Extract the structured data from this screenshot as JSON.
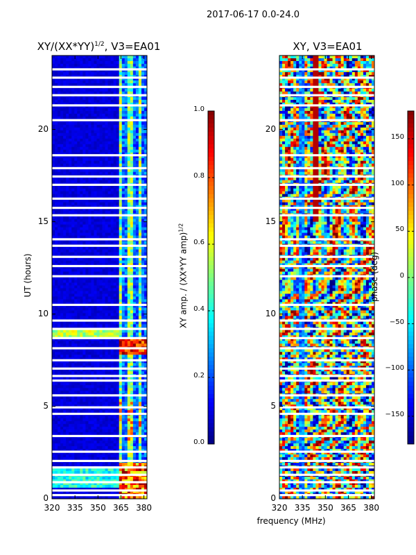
{
  "suptitle": "2017-06-17 0.0-24.0",
  "chart_data": [
    {
      "type": "heatmap",
      "title_main": "XY/(XX*YY)",
      "title_exp": "1/2",
      "title_tail": ", V3=EA01",
      "ylabel": "UT (hours)",
      "xlabel": "",
      "xlim": [
        320,
        382
      ],
      "ylim": [
        0,
        24
      ],
      "xticks": [
        "320",
        "335",
        "350",
        "365",
        "380"
      ],
      "yticks": [
        "0",
        "5",
        "10",
        "15",
        "20"
      ],
      "colormap": "jet",
      "colorbar": {
        "label": "XY amp. / (XX*YY amp)",
        "label_exp": "1/2",
        "range": [
          0.0,
          1.0
        ],
        "ticks": [
          "0.0",
          "0.2",
          "0.4",
          "0.6",
          "0.8",
          "1.0"
        ]
      }
    },
    {
      "type": "heatmap",
      "title": "XY, V3=EA01",
      "ylabel": "",
      "xlabel": "frequency (MHz)",
      "xlim": [
        320,
        382
      ],
      "ylim": [
        0,
        24
      ],
      "xticks": [
        "320",
        "335",
        "350",
        "365",
        "380"
      ],
      "yticks": [
        "0",
        "5",
        "10",
        "15",
        "20"
      ],
      "colormap": "jet",
      "colorbar": {
        "label": "phase (deg)",
        "range": [
          -180,
          180
        ],
        "ticks": [
          "150",
          "100",
          "50",
          "0",
          "−50",
          "−100",
          "−150"
        ]
      }
    }
  ],
  "colors": {
    "jet_dark_blue": "#00008f",
    "jet_blue": "#0000ff",
    "jet_cyan": "#00ffff",
    "jet_yellow": "#ffff00",
    "jet_red": "#ff0000",
    "jet_dark_red": "#800000"
  },
  "gaps_hours": [
    0.2,
    0.45,
    0.9,
    1.3,
    1.7,
    2.05,
    2.55,
    3.4,
    4.6,
    4.95,
    5.6,
    6.4,
    6.65,
    7.05,
    7.5,
    8.15,
    8.7,
    9.2,
    9.65,
    10.5,
    12.05,
    12.6,
    13.1,
    13.7,
    14.05,
    15.35,
    15.75,
    16.25,
    17.0,
    17.45,
    17.9,
    18.6,
    20.5,
    21.3,
    21.85,
    22.3,
    22.8,
    23.25
  ]
}
